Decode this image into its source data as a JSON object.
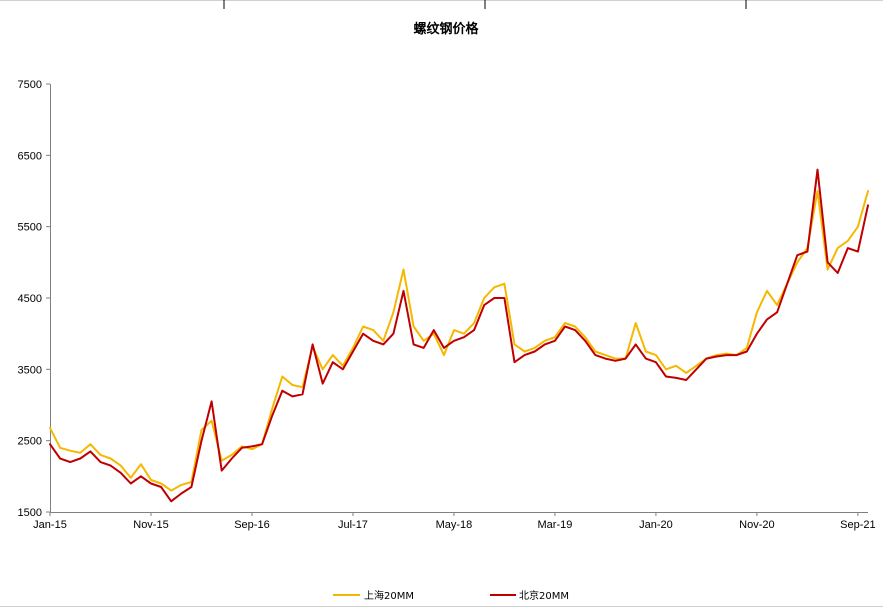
{
  "chart_data": {
    "type": "line",
    "title": "螺纹钢价格",
    "xlabel": "",
    "ylabel": "",
    "x_tick_labels": [
      "Jan-15",
      "Nov-15",
      "Sep-16",
      "Jul-17",
      "May-18",
      "Mar-19",
      "Jan-20",
      "Nov-20",
      "Sep-21"
    ],
    "x_tick_dates": [
      "2015-01",
      "2015-11",
      "2016-09",
      "2017-07",
      "2018-05",
      "2019-03",
      "2020-01",
      "2020-11",
      "2021-09"
    ],
    "xlim": [
      "2015-01",
      "2021-10"
    ],
    "y_ticks": [
      1500,
      2500,
      3500,
      4500,
      5500,
      6500,
      7500
    ],
    "ylim": [
      1500,
      7500
    ],
    "grid": false,
    "legend_position": "bottom-center",
    "colors": {
      "series_1": "#F5B800",
      "series_2": "#C00000",
      "axis": "#808080"
    },
    "series": [
      {
        "name": "上海20MM",
        "color": "#F5B800",
        "points": [
          [
            "2015-01",
            2680
          ],
          [
            "2015-02",
            2400
          ],
          [
            "2015-03",
            2360
          ],
          [
            "2015-04",
            2330
          ],
          [
            "2015-05",
            2450
          ],
          [
            "2015-06",
            2300
          ],
          [
            "2015-07",
            2250
          ],
          [
            "2015-08",
            2150
          ],
          [
            "2015-09",
            1980
          ],
          [
            "2015-10",
            2170
          ],
          [
            "2015-11",
            1950
          ],
          [
            "2015-12",
            1900
          ],
          [
            "2016-01",
            1800
          ],
          [
            "2016-02",
            1880
          ],
          [
            "2016-03",
            1920
          ],
          [
            "2016-04",
            2650
          ],
          [
            "2016-05",
            2780
          ],
          [
            "2016-06",
            2220
          ],
          [
            "2016-07",
            2300
          ],
          [
            "2016-08",
            2420
          ],
          [
            "2016-09",
            2380
          ],
          [
            "2016-10",
            2450
          ],
          [
            "2016-11",
            2950
          ],
          [
            "2016-12",
            3400
          ],
          [
            "2017-01",
            3280
          ],
          [
            "2017-02",
            3250
          ],
          [
            "2017-03",
            3820
          ],
          [
            "2017-04",
            3500
          ],
          [
            "2017-05",
            3700
          ],
          [
            "2017-06",
            3550
          ],
          [
            "2017-07",
            3800
          ],
          [
            "2017-08",
            4100
          ],
          [
            "2017-09",
            4050
          ],
          [
            "2017-10",
            3900
          ],
          [
            "2017-11",
            4300
          ],
          [
            "2017-12",
            4900
          ],
          [
            "2018-01",
            4100
          ],
          [
            "2018-02",
            3900
          ],
          [
            "2018-03",
            4000
          ],
          [
            "2018-04",
            3700
          ],
          [
            "2018-05",
            4050
          ],
          [
            "2018-06",
            4000
          ],
          [
            "2018-07",
            4150
          ],
          [
            "2018-08",
            4500
          ],
          [
            "2018-09",
            4650
          ],
          [
            "2018-10",
            4700
          ],
          [
            "2018-11",
            3850
          ],
          [
            "2018-12",
            3750
          ],
          [
            "2019-01",
            3800
          ],
          [
            "2019-02",
            3900
          ],
          [
            "2019-03",
            3950
          ],
          [
            "2019-04",
            4150
          ],
          [
            "2019-05",
            4100
          ],
          [
            "2019-06",
            3950
          ],
          [
            "2019-07",
            3750
          ],
          [
            "2019-08",
            3700
          ],
          [
            "2019-09",
            3650
          ],
          [
            "2019-10",
            3650
          ],
          [
            "2019-11",
            4150
          ],
          [
            "2019-12",
            3750
          ],
          [
            "2020-01",
            3700
          ],
          [
            "2020-02",
            3500
          ],
          [
            "2020-03",
            3550
          ],
          [
            "2020-04",
            3450
          ],
          [
            "2020-05",
            3550
          ],
          [
            "2020-06",
            3650
          ],
          [
            "2020-07",
            3700
          ],
          [
            "2020-08",
            3720
          ],
          [
            "2020-09",
            3700
          ],
          [
            "2020-10",
            3800
          ],
          [
            "2020-11",
            4300
          ],
          [
            "2020-12",
            4600
          ],
          [
            "2021-01",
            4400
          ],
          [
            "2021-02",
            4700
          ],
          [
            "2021-03",
            5000
          ],
          [
            "2021-04",
            5200
          ],
          [
            "2021-05",
            6000
          ],
          [
            "2021-06",
            4900
          ],
          [
            "2021-07",
            5200
          ],
          [
            "2021-08",
            5300
          ],
          [
            "2021-09",
            5500
          ],
          [
            "2021-10",
            6000
          ]
        ]
      },
      {
        "name": "北京20MM",
        "color": "#C00000",
        "points": [
          [
            "2015-01",
            2450
          ],
          [
            "2015-02",
            2250
          ],
          [
            "2015-03",
            2200
          ],
          [
            "2015-04",
            2250
          ],
          [
            "2015-05",
            2350
          ],
          [
            "2015-06",
            2200
          ],
          [
            "2015-07",
            2150
          ],
          [
            "2015-08",
            2050
          ],
          [
            "2015-09",
            1900
          ],
          [
            "2015-10",
            2000
          ],
          [
            "2015-11",
            1900
          ],
          [
            "2015-12",
            1850
          ],
          [
            "2016-01",
            1650
          ],
          [
            "2016-02",
            1760
          ],
          [
            "2016-03",
            1850
          ],
          [
            "2016-04",
            2500
          ],
          [
            "2016-05",
            3050
          ],
          [
            "2016-06",
            2080
          ],
          [
            "2016-07",
            2250
          ],
          [
            "2016-08",
            2400
          ],
          [
            "2016-09",
            2420
          ],
          [
            "2016-10",
            2450
          ],
          [
            "2016-11",
            2850
          ],
          [
            "2016-12",
            3200
          ],
          [
            "2017-01",
            3120
          ],
          [
            "2017-02",
            3150
          ],
          [
            "2017-03",
            3850
          ],
          [
            "2017-04",
            3300
          ],
          [
            "2017-05",
            3600
          ],
          [
            "2017-06",
            3500
          ],
          [
            "2017-07",
            3750
          ],
          [
            "2017-08",
            4000
          ],
          [
            "2017-09",
            3900
          ],
          [
            "2017-10",
            3850
          ],
          [
            "2017-11",
            4000
          ],
          [
            "2017-12",
            4600
          ],
          [
            "2018-01",
            3850
          ],
          [
            "2018-02",
            3800
          ],
          [
            "2018-03",
            4050
          ],
          [
            "2018-04",
            3800
          ],
          [
            "2018-05",
            3900
          ],
          [
            "2018-06",
            3950
          ],
          [
            "2018-07",
            4050
          ],
          [
            "2018-08",
            4400
          ],
          [
            "2018-09",
            4500
          ],
          [
            "2018-10",
            4500
          ],
          [
            "2018-11",
            3600
          ],
          [
            "2018-12",
            3700
          ],
          [
            "2019-01",
            3750
          ],
          [
            "2019-02",
            3850
          ],
          [
            "2019-03",
            3900
          ],
          [
            "2019-04",
            4100
          ],
          [
            "2019-05",
            4050
          ],
          [
            "2019-06",
            3900
          ],
          [
            "2019-07",
            3700
          ],
          [
            "2019-08",
            3650
          ],
          [
            "2019-09",
            3620
          ],
          [
            "2019-10",
            3650
          ],
          [
            "2019-11",
            3850
          ],
          [
            "2019-12",
            3650
          ],
          [
            "2020-01",
            3600
          ],
          [
            "2020-02",
            3400
          ],
          [
            "2020-03",
            3380
          ],
          [
            "2020-04",
            3350
          ],
          [
            "2020-05",
            3500
          ],
          [
            "2020-06",
            3650
          ],
          [
            "2020-07",
            3680
          ],
          [
            "2020-08",
            3700
          ],
          [
            "2020-09",
            3700
          ],
          [
            "2020-10",
            3750
          ],
          [
            "2020-11",
            4000
          ],
          [
            "2020-12",
            4200
          ],
          [
            "2021-01",
            4300
          ],
          [
            "2021-02",
            4700
          ],
          [
            "2021-03",
            5100
          ],
          [
            "2021-04",
            5150
          ],
          [
            "2021-05",
            6300
          ],
          [
            "2021-06",
            5000
          ],
          [
            "2021-07",
            4850
          ],
          [
            "2021-08",
            5200
          ],
          [
            "2021-09",
            5150
          ],
          [
            "2021-10",
            5800
          ]
        ]
      }
    ]
  }
}
